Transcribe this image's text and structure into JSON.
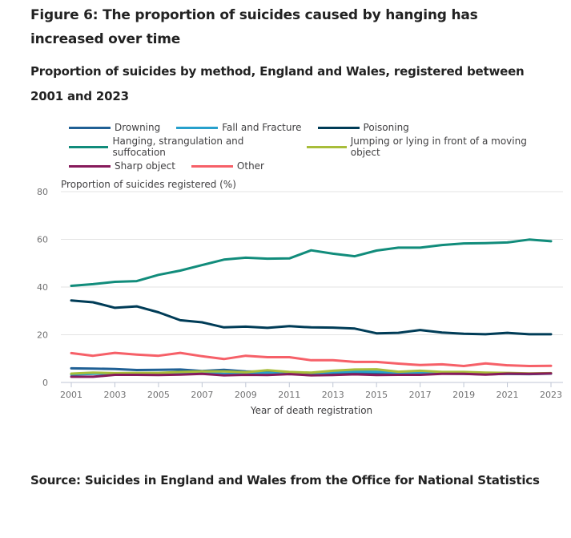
{
  "title": "Figure 6: The proportion of suicides caused by hanging has increased over time",
  "subtitle": "Proportion of suicides by method, England and Wales, registered between 2001 and 2023",
  "source": "Source: Suicides in England and Wales from the Office for National Statistics",
  "chart_data": {
    "type": "line",
    "title": "Proportion of suicides by method, England and Wales, registered between 2001 and 2023",
    "xlabel": "Year of death registration",
    "ylabel": "Proportion of suicides registered (%)",
    "ylim": [
      0,
      80
    ],
    "yticks": [
      "0",
      "20",
      "40",
      "60",
      "80"
    ],
    "xticks": [
      "2001",
      "2003",
      "2005",
      "2007",
      "2009",
      "2011",
      "2013",
      "2015",
      "2017",
      "2019",
      "2021",
      "2023"
    ],
    "grid": true,
    "legend_position": "top",
    "x": [
      2001,
      2002,
      2003,
      2004,
      2005,
      2006,
      2007,
      2008,
      2009,
      2010,
      2011,
      2012,
      2013,
      2014,
      2015,
      2016,
      2017,
      2018,
      2019,
      2020,
      2021,
      2022,
      2023
    ],
    "series": [
      {
        "name": "Drowning",
        "color": "#206095",
        "values": [
          5.9,
          5.8,
          5.6,
          5.2,
          5.3,
          5.4,
          4.8,
          5.3,
          4.6,
          4.5,
          4.2,
          3.9,
          3.9,
          4.0,
          3.7,
          3.7,
          3.7,
          3.7,
          3.6,
          3.4,
          3.6,
          3.5,
          3.7
        ]
      },
      {
        "name": "Fall and Fracture",
        "color": "#27A0CC",
        "values": [
          3.3,
          3.6,
          3.7,
          3.6,
          3.5,
          3.8,
          4.1,
          3.6,
          3.7,
          4.0,
          3.5,
          3.7,
          4.3,
          4.6,
          4.5,
          4.1,
          4.2,
          4.0,
          3.8,
          3.7,
          3.6,
          3.6,
          3.8
        ]
      },
      {
        "name": "Poisoning",
        "color": "#003C57",
        "values": [
          34.4,
          33.6,
          31.3,
          31.9,
          29.4,
          26.1,
          25.2,
          23.1,
          23.4,
          22.9,
          23.6,
          23.1,
          23.0,
          22.6,
          20.6,
          20.8,
          22.0,
          20.9,
          20.4,
          20.2,
          20.8,
          20.2,
          20.2
        ]
      },
      {
        "name": "Hanging, strangulation and suffocation",
        "color": "#118C7B",
        "values": [
          40.5,
          41.2,
          42.2,
          42.5,
          45.1,
          46.9,
          49.2,
          51.5,
          52.3,
          51.9,
          52.0,
          55.4,
          54.0,
          52.9,
          55.3,
          56.5,
          56.5,
          57.6,
          58.3,
          58.4,
          58.7,
          59.9,
          59.2
        ]
      },
      {
        "name": "Jumping or lying in front of a moving object",
        "color": "#A8BD3A",
        "values": [
          3.7,
          4.1,
          3.9,
          4.0,
          4.0,
          4.4,
          4.6,
          4.6,
          4.3,
          5.1,
          4.4,
          4.1,
          4.9,
          5.4,
          5.5,
          4.5,
          4.9,
          4.4,
          4.4,
          4.1,
          4.0,
          3.8,
          3.9
        ]
      },
      {
        "name": "Sharp object",
        "color": "#871A5B",
        "values": [
          2.4,
          2.4,
          3.2,
          3.2,
          3.1,
          3.3,
          3.6,
          3.0,
          3.2,
          3.1,
          3.5,
          3.0,
          3.1,
          3.4,
          3.1,
          3.2,
          3.2,
          3.6,
          3.6,
          3.3,
          3.7,
          3.6,
          3.8
        ]
      },
      {
        "name": "Other",
        "color": "#F66068",
        "values": [
          12.3,
          11.2,
          12.4,
          11.7,
          11.2,
          12.4,
          11.0,
          9.8,
          11.2,
          10.6,
          10.6,
          9.3,
          9.3,
          8.6,
          8.6,
          7.9,
          7.3,
          7.6,
          6.9,
          8.0,
          7.2,
          6.9,
          7.0
        ]
      }
    ]
  }
}
